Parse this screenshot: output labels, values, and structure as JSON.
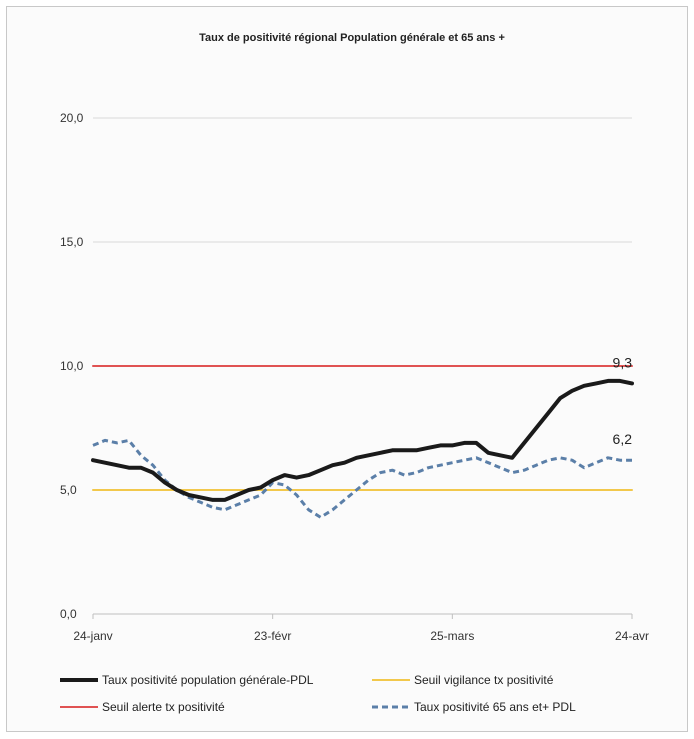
{
  "chart_data": {
    "type": "line",
    "title": "Taux de positivité régional Population générale et 65 ans +",
    "xlabel": "",
    "ylabel": "",
    "ylim": [
      0,
      20
    ],
    "yticks": [
      "0,0",
      "5,0",
      "10,0",
      "15,0",
      "20,0"
    ],
    "ytick_values": [
      0,
      5,
      10,
      15,
      20
    ],
    "xticks": [
      "24-janv",
      "23-févr",
      "25-mars",
      "24-avr"
    ],
    "xtick_values": [
      0,
      30,
      60,
      90
    ],
    "grid": true,
    "legend_position": "bottom",
    "x": [
      0,
      2,
      4,
      6,
      8,
      10,
      12,
      14,
      16,
      18,
      20,
      22,
      24,
      26,
      28,
      30,
      32,
      34,
      36,
      38,
      40,
      42,
      44,
      46,
      48,
      50,
      52,
      54,
      56,
      58,
      60,
      62,
      64,
      66,
      68,
      70,
      72,
      74,
      76,
      78,
      80,
      82,
      84,
      86,
      88,
      90
    ],
    "series": [
      {
        "name": "Taux positivité population générale-PDL",
        "color": "#1a1a1a",
        "style": "solid",
        "values": [
          6.2,
          6.1,
          6.0,
          5.9,
          5.9,
          5.7,
          5.3,
          5.0,
          4.8,
          4.7,
          4.6,
          4.6,
          4.8,
          5.0,
          5.1,
          5.4,
          5.6,
          5.5,
          5.6,
          5.8,
          6.0,
          6.1,
          6.3,
          6.4,
          6.5,
          6.6,
          6.6,
          6.6,
          6.7,
          6.8,
          6.8,
          6.9,
          6.9,
          6.5,
          6.4,
          6.3,
          6.9,
          7.5,
          8.1,
          8.7,
          9.0,
          9.2,
          9.3,
          9.4,
          9.4,
          9.3
        ]
      },
      {
        "name": "Seuil vigilance tx positivité",
        "color": "#f2c84b",
        "style": "solid",
        "values": [
          5.0,
          5.0,
          5.0,
          5.0,
          5.0,
          5.0,
          5.0,
          5.0,
          5.0,
          5.0,
          5.0,
          5.0,
          5.0,
          5.0,
          5.0,
          5.0,
          5.0,
          5.0,
          5.0,
          5.0,
          5.0,
          5.0,
          5.0,
          5.0,
          5.0,
          5.0,
          5.0,
          5.0,
          5.0,
          5.0,
          5.0,
          5.0,
          5.0,
          5.0,
          5.0,
          5.0,
          5.0,
          5.0,
          5.0,
          5.0,
          5.0,
          5.0,
          5.0,
          5.0,
          5.0,
          5.0
        ]
      },
      {
        "name": "Seuil alerte tx positivité",
        "color": "#e05252",
        "style": "solid",
        "values": [
          10.0,
          10.0,
          10.0,
          10.0,
          10.0,
          10.0,
          10.0,
          10.0,
          10.0,
          10.0,
          10.0,
          10.0,
          10.0,
          10.0,
          10.0,
          10.0,
          10.0,
          10.0,
          10.0,
          10.0,
          10.0,
          10.0,
          10.0,
          10.0,
          10.0,
          10.0,
          10.0,
          10.0,
          10.0,
          10.0,
          10.0,
          10.0,
          10.0,
          10.0,
          10.0,
          10.0,
          10.0,
          10.0,
          10.0,
          10.0,
          10.0,
          10.0,
          10.0,
          10.0,
          10.0,
          10.0
        ]
      },
      {
        "name": "Taux positivité 65 ans et+ PDL",
        "color": "#5b7fa8",
        "style": "dashed",
        "values": [
          6.8,
          7.0,
          6.9,
          7.0,
          6.4,
          6.0,
          5.4,
          5.0,
          4.7,
          4.5,
          4.3,
          4.2,
          4.4,
          4.6,
          4.8,
          5.3,
          5.2,
          4.8,
          4.2,
          3.9,
          4.2,
          4.6,
          5.0,
          5.4,
          5.7,
          5.8,
          5.6,
          5.7,
          5.9,
          6.0,
          6.1,
          6.2,
          6.3,
          6.1,
          5.9,
          5.7,
          5.8,
          6.0,
          6.2,
          6.3,
          6.2,
          5.9,
          6.1,
          6.3,
          6.2,
          6.2
        ]
      }
    ],
    "annotations": [
      {
        "text": "9,3",
        "series": 0
      },
      {
        "text": "6,2",
        "series": 3
      }
    ]
  }
}
